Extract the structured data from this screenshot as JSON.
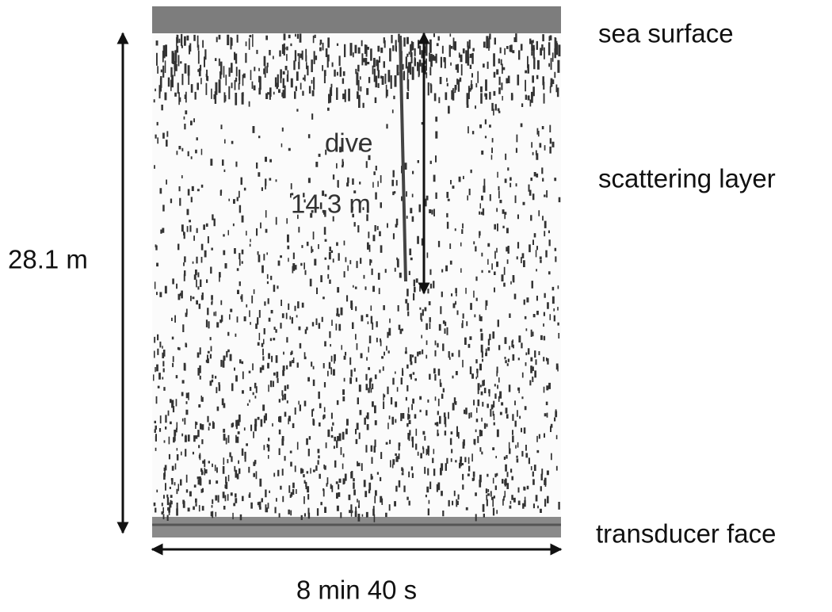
{
  "labels": {
    "sea_surface": "sea surface",
    "scattering_layer": "scattering layer",
    "transducer_face": "transducer face",
    "dive": "dive",
    "dive_depth": "14.3 m",
    "range": "28.1 m",
    "duration": "8 min 40 s"
  }
}
